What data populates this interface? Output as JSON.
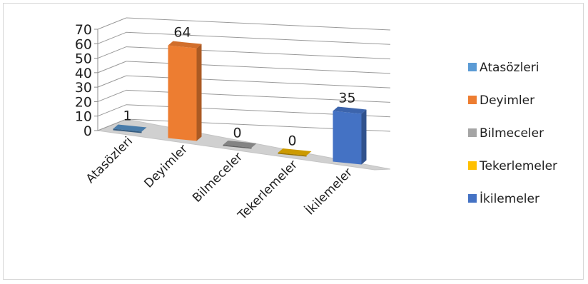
{
  "chart_data": {
    "type": "bar",
    "categories": [
      "Atasözleri",
      "Deyimler",
      "Bilmeceler",
      "Tekerlemeler",
      "İkilemeler"
    ],
    "values": [
      1,
      64,
      0,
      0,
      35
    ],
    "data_labels": [
      "1",
      "64",
      "0",
      "0",
      "35"
    ],
    "colors": [
      "#5b9bd5",
      "#ed7d31",
      "#a5a5a5",
      "#ffc000",
      "#4472c4"
    ],
    "ylim": [
      0,
      70
    ],
    "yticks": [
      "0",
      "10",
      "20",
      "30",
      "40",
      "50",
      "60",
      "70"
    ],
    "legend": [
      "Atasözleri",
      "Deyimler",
      "Bilmeceler",
      "Tekerlemeler",
      "İkilemeler"
    ],
    "legend_position": "right",
    "grid": true,
    "style": "3d-column"
  }
}
